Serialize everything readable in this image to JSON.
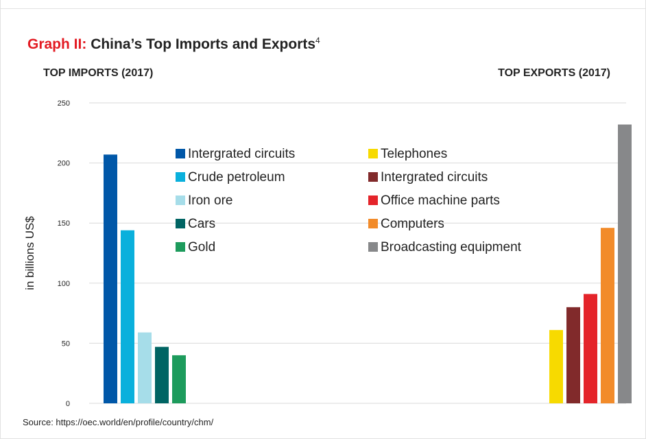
{
  "header": {
    "title_accent": "Graph II:",
    "title_main": "China’s Top Imports and Exports",
    "title_sup": "4",
    "imports_heading": "TOP IMPORTS (2017)",
    "exports_heading": "TOP EXPORTS (2017)"
  },
  "source": "Source: https://oec.world/en/profile/country/chm/",
  "chart_data": {
    "type": "bar",
    "ylabel": "in billions US$",
    "ylim": [
      0,
      250
    ],
    "yticks": [
      0,
      50,
      100,
      150,
      200,
      250
    ],
    "grid": true,
    "legend_position": "top-center",
    "groups": [
      {
        "name": "TOP IMPORTS (2017)",
        "series": [
          {
            "name": "Intergrated circuits",
            "value": 207,
            "color": "#0057a8"
          },
          {
            "name": "Crude petroleum",
            "value": 144,
            "color": "#0ab0dc"
          },
          {
            "name": "Iron ore",
            "value": 59,
            "color": "#a6dde9"
          },
          {
            "name": "Cars",
            "value": 47,
            "color": "#006463"
          },
          {
            "name": "Gold",
            "value": 40,
            "color": "#1d9b5c"
          }
        ]
      },
      {
        "name": "TOP EXPORTS (2017)",
        "series": [
          {
            "name": "Telephones",
            "value": 61,
            "color": "#f7da00"
          },
          {
            "name": "Intergrated circuits",
            "value": 80,
            "color": "#812a2b"
          },
          {
            "name": "Office machine parts",
            "value": 91,
            "color": "#e4242a"
          },
          {
            "name": "Computers",
            "value": 146,
            "color": "#f28b2a"
          },
          {
            "name": "Broadcasting equipment",
            "value": 232,
            "color": "#87888a"
          }
        ]
      }
    ]
  }
}
